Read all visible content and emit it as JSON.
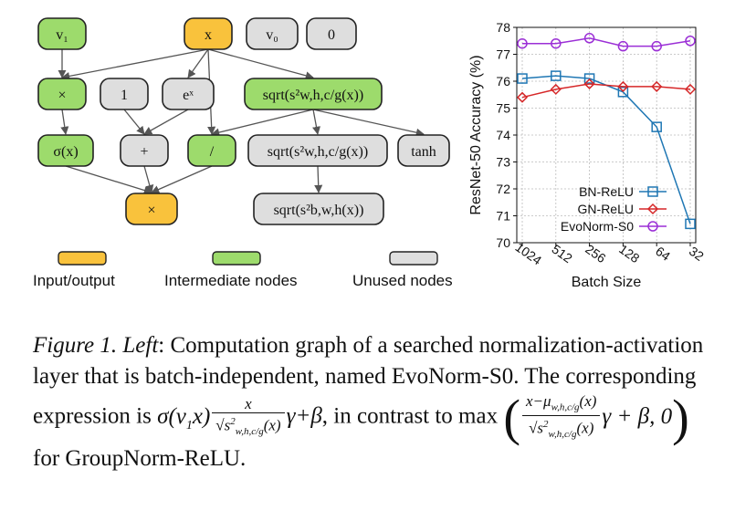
{
  "graph": {
    "nodes": [
      {
        "id": "v1",
        "label": "v₁",
        "kind": "intermediate"
      },
      {
        "id": "x",
        "label": "x",
        "kind": "io"
      },
      {
        "id": "v0",
        "label": "v₀",
        "kind": "unused"
      },
      {
        "id": "zero",
        "label": "0",
        "kind": "unused"
      },
      {
        "id": "mul1",
        "label": "×",
        "kind": "intermediate"
      },
      {
        "id": "one",
        "label": "1",
        "kind": "unused"
      },
      {
        "id": "exp",
        "label": "eˣ",
        "kind": "unused"
      },
      {
        "id": "sqrt1",
        "label": "sqrt(s²w,h,c/g(x))",
        "kind": "intermediate"
      },
      {
        "id": "sigma",
        "label": "σ(x)",
        "kind": "intermediate"
      },
      {
        "id": "plus",
        "label": "+",
        "kind": "unused"
      },
      {
        "id": "div",
        "label": "/",
        "kind": "intermediate"
      },
      {
        "id": "sqrt2",
        "label": "sqrt(s²w,h,c/g(x))",
        "kind": "unused"
      },
      {
        "id": "tanh",
        "label": "tanh",
        "kind": "unused"
      },
      {
        "id": "mul2",
        "label": "×",
        "kind": "io"
      },
      {
        "id": "sqrt3",
        "label": "sqrt(s²b,w,h(x))",
        "kind": "unused"
      }
    ],
    "edges": [
      [
        "v1",
        "mul1"
      ],
      [
        "x",
        "mul1"
      ],
      [
        "x",
        "exp"
      ],
      [
        "x",
        "div"
      ],
      [
        "x",
        "sqrt1"
      ],
      [
        "mul1",
        "sigma"
      ],
      [
        "one",
        "plus"
      ],
      [
        "exp",
        "plus"
      ],
      [
        "sqrt1",
        "div"
      ],
      [
        "sqrt1",
        "sqrt2"
      ],
      [
        "sqrt1",
        "tanh"
      ],
      [
        "sigma",
        "mul2"
      ],
      [
        "plus",
        "mul2"
      ],
      [
        "div",
        "mul2"
      ],
      [
        "sqrt2",
        "sqrt3"
      ]
    ]
  },
  "legend": {
    "io": "Input/output",
    "intermediate": "Intermediate nodes",
    "unused": "Unused nodes"
  },
  "colors": {
    "io": "#f9c23c",
    "intermediate": "#9ddb6c",
    "unused": "#dedede"
  },
  "chart_data": {
    "type": "line",
    "x": [
      "1024",
      "512",
      "256",
      "128",
      "64",
      "32"
    ],
    "xlabel": "Batch Size",
    "ylabel": "ResNet-50 Accuracy (%)",
    "ylim": [
      70,
      78
    ],
    "yticks": [
      70,
      71,
      72,
      73,
      74,
      75,
      76,
      77,
      78
    ],
    "grid": true,
    "legend_position": "lower-right",
    "series": [
      {
        "name": "BN-ReLU",
        "color": "#1f77b4",
        "marker": "square",
        "values": [
          76.1,
          76.2,
          76.1,
          75.6,
          74.3,
          70.7
        ]
      },
      {
        "name": "GN-ReLU",
        "color": "#d62728",
        "marker": "diamond",
        "values": [
          75.4,
          75.7,
          75.9,
          75.8,
          75.8,
          75.7
        ]
      },
      {
        "name": "EvoNorm-S0",
        "color": "#9b2fd6",
        "marker": "circle",
        "values": [
          77.4,
          77.4,
          77.6,
          77.3,
          77.3,
          77.5
        ]
      }
    ]
  },
  "caption": {
    "label": "Figure 1.",
    "left": "Left",
    "text1": ": Computation graph of a searched normalization-activation layer that is batch-independent, named EvoNorm-S0. The corresponding expression is ",
    "text2": ", in contrast to max",
    "text3": " for GroupNorm-ReLU."
  }
}
